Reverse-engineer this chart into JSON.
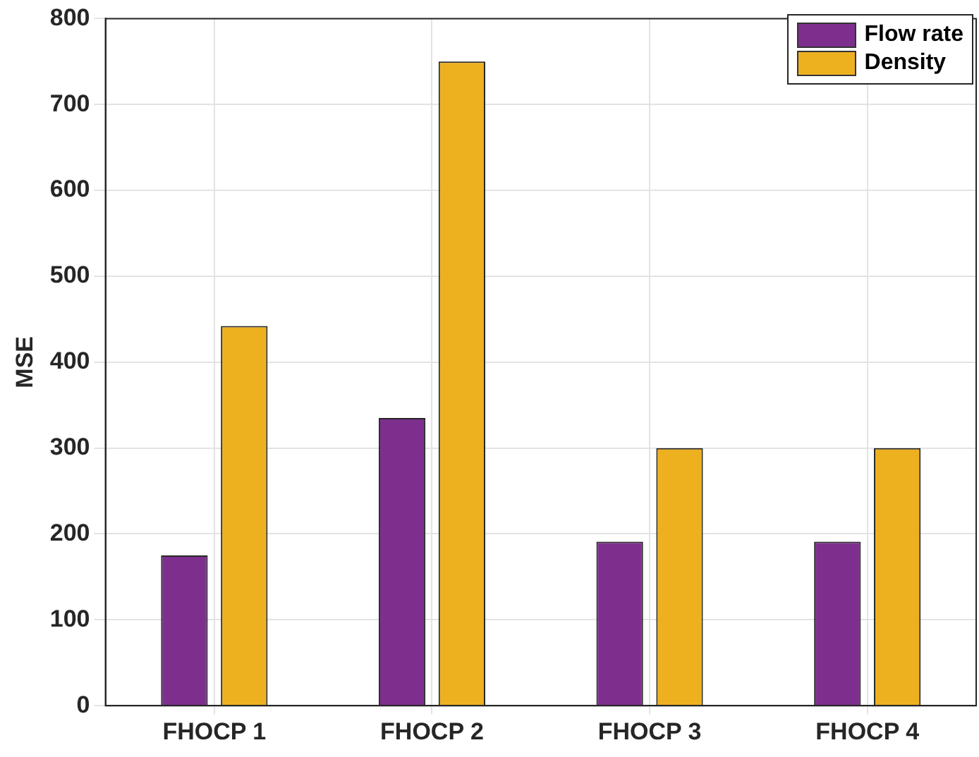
{
  "chart_data": {
    "type": "bar",
    "ylabel": "MSE",
    "categories": [
      "FHOCP 1",
      "FHOCP 2",
      "FHOCP 3",
      "FHOCP 4"
    ],
    "series": [
      {
        "name": "Flow rate",
        "color": "#7e2f8e",
        "values": [
          175,
          335,
          191,
          191
        ]
      },
      {
        "name": "Density",
        "color": "#edb120",
        "values": [
          442,
          750,
          300,
          300
        ]
      }
    ],
    "ylim": [
      0,
      800
    ],
    "yticks": [
      0,
      100,
      200,
      300,
      400,
      500,
      600,
      700,
      800
    ],
    "grid": true,
    "legend": "top right"
  }
}
